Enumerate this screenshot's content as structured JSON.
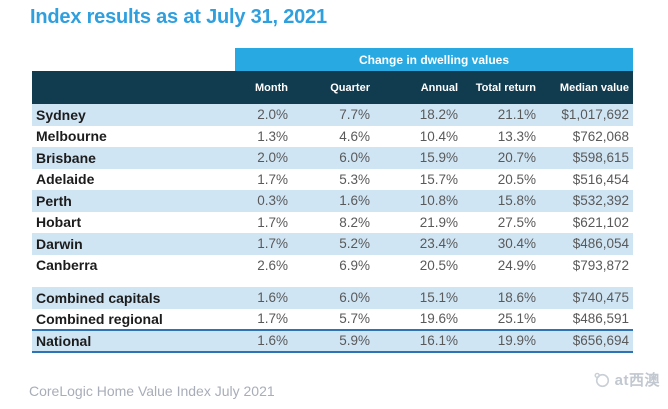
{
  "page": {
    "title": "Index results as at July 31, 2021",
    "footer": "CoreLogic Home Value Index July 2021",
    "watermark_text": "at西澳"
  },
  "colors": {
    "title_blue": "#2F9FDE",
    "band_blue": "#29A9E1",
    "header_navy": "#113B4F",
    "row_blue": "#D0E5F4",
    "value_gray": "#595959",
    "label_dark": "#1C1C1C",
    "national_border": "#2E74B5",
    "footer_gray": "#A8ADB8",
    "watermark_gray": "#C2C8D0"
  },
  "chart_data": {
    "type": "table",
    "title": "Index results as at July 31, 2021",
    "group_header": "Change in dwelling values",
    "columns": [
      "Month",
      "Quarter",
      "Annual",
      "Total return",
      "Median value"
    ],
    "rows": [
      {
        "label": "Sydney",
        "values": [
          "2.0%",
          "7.7%",
          "18.2%",
          "21.1%",
          "$1,017,692"
        ]
      },
      {
        "label": "Melbourne",
        "values": [
          "1.3%",
          "4.6%",
          "10.4%",
          "13.3%",
          "$762,068"
        ]
      },
      {
        "label": "Brisbane",
        "values": [
          "2.0%",
          "6.0%",
          "15.9%",
          "20.7%",
          "$598,615"
        ]
      },
      {
        "label": "Adelaide",
        "values": [
          "1.7%",
          "5.3%",
          "15.7%",
          "20.5%",
          "$516,454"
        ]
      },
      {
        "label": "Perth",
        "values": [
          "0.3%",
          "1.6%",
          "10.8%",
          "15.8%",
          "$532,392"
        ]
      },
      {
        "label": "Hobart",
        "values": [
          "1.7%",
          "8.2%",
          "21.9%",
          "27.5%",
          "$621,102"
        ]
      },
      {
        "label": "Darwin",
        "values": [
          "1.7%",
          "5.2%",
          "23.4%",
          "30.4%",
          "$486,054"
        ]
      },
      {
        "label": "Canberra",
        "values": [
          "2.6%",
          "6.9%",
          "20.5%",
          "24.9%",
          "$793,872"
        ]
      },
      {
        "spacer": true
      },
      {
        "label": "Combined capitals",
        "values": [
          "1.6%",
          "6.0%",
          "15.1%",
          "18.6%",
          "$740,475"
        ]
      },
      {
        "label": "Combined regional",
        "values": [
          "1.7%",
          "5.7%",
          "19.6%",
          "25.1%",
          "$486,591"
        ]
      },
      {
        "label": "National",
        "values": [
          "1.6%",
          "5.9%",
          "16.1%",
          "19.9%",
          "$656,694"
        ],
        "emphasis": true
      }
    ],
    "source_note": "CoreLogic Home Value Index July 2021",
    "layout": {
      "grid": false,
      "zebra_striping": true,
      "group_header_spans_value_columns_only": true
    }
  }
}
